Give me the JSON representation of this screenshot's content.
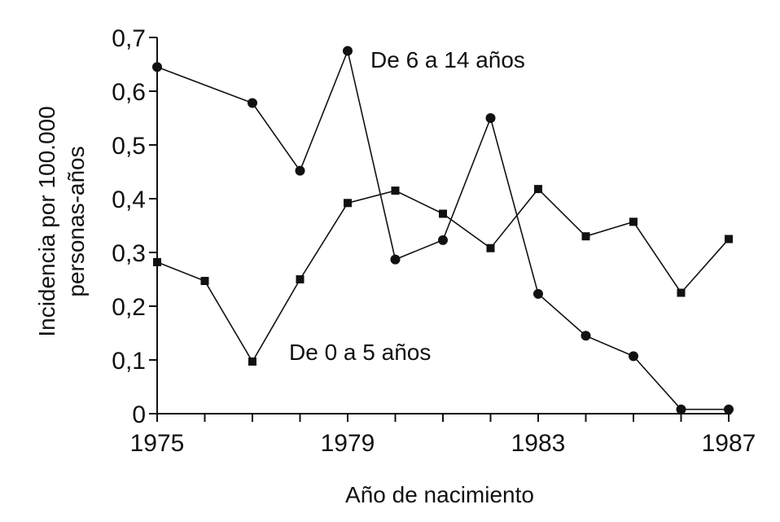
{
  "chart_data": {
    "type": "line",
    "xlabel": "Año de nacimiento",
    "ylabel_lines": [
      "Incidencia por 100.000",
      "personas-años"
    ],
    "xlim": [
      1975,
      1987
    ],
    "ylim": [
      0,
      0.7
    ],
    "x_ticks": [
      1975,
      1976,
      1977,
      1978,
      1979,
      1980,
      1981,
      1982,
      1983,
      1984,
      1985,
      1986,
      1987
    ],
    "x_tick_labels": [
      {
        "value": 1975,
        "label": "1975"
      },
      {
        "value": 1979,
        "label": "1979"
      },
      {
        "value": 1983,
        "label": "1983"
      },
      {
        "value": 1987,
        "label": "1987"
      }
    ],
    "y_ticks": [
      {
        "value": 0,
        "label": "0"
      },
      {
        "value": 0.1,
        "label": "0,1"
      },
      {
        "value": 0.2,
        "label": "0,2"
      },
      {
        "value": 0.3,
        "label": "0,3"
      },
      {
        "value": 0.4,
        "label": "0,4"
      },
      {
        "value": 0.5,
        "label": "0,5"
      },
      {
        "value": 0.6,
        "label": "0,6"
      },
      {
        "value": 0.7,
        "label": "0,7"
      }
    ],
    "grid": false,
    "line_color": "#111111",
    "series": [
      {
        "marker": "circle",
        "annotation": "De 6 a 14 años",
        "x": [
          1975,
          1977,
          1978,
          1979,
          1980,
          1981,
          1982,
          1983,
          1984,
          1985,
          1986,
          1987
        ],
        "values": [
          0.645,
          0.578,
          0.452,
          0.675,
          0.287,
          0.323,
          0.55,
          0.223,
          0.145,
          0.107,
          0.008,
          0.008
        ]
      },
      {
        "marker": "square",
        "annotation": "De 0 a 5 años",
        "x": [
          1975,
          1976,
          1977,
          1978,
          1979,
          1980,
          1981,
          1982,
          1983,
          1984,
          1985,
          1986,
          1987
        ],
        "values": [
          0.282,
          0.247,
          0.097,
          0.25,
          0.392,
          0.415,
          0.372,
          0.308,
          0.418,
          0.33,
          0.357,
          0.225,
          0.325
        ]
      }
    ]
  }
}
